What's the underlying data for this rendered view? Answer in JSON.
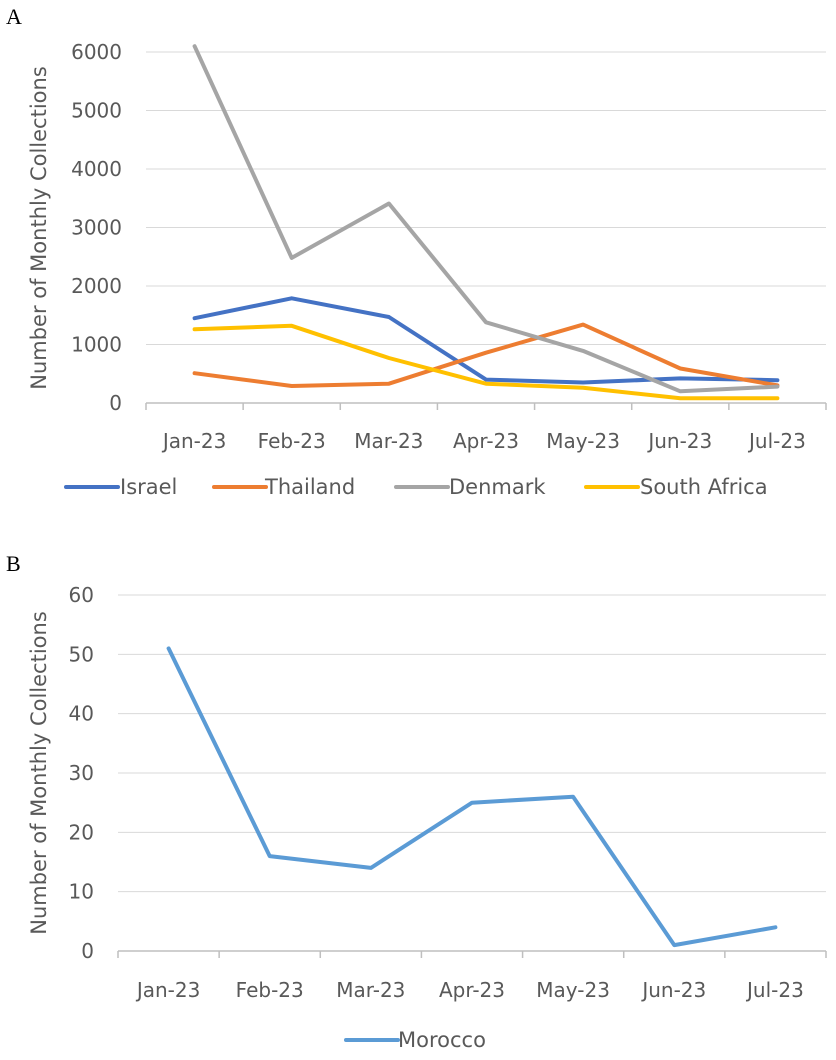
{
  "chart_data": [
    {
      "panel": "A",
      "type": "line",
      "categories": [
        "Jan-23",
        "Feb-23",
        "Mar-23",
        "Apr-23",
        "May-23",
        "Jun-23",
        "Jul-23"
      ],
      "ylabel": "Number of Monthly Collections",
      "ylim": [
        0,
        6000
      ],
      "yticks": [
        0,
        1000,
        2000,
        3000,
        4000,
        5000,
        6000
      ],
      "grid": true,
      "legend": "bottom",
      "series": [
        {
          "name": "Israel",
          "color": "#4472c4",
          "values": [
            1450,
            1790,
            1470,
            400,
            350,
            420,
            390
          ]
        },
        {
          "name": "Thailand",
          "color": "#ed7d31",
          "values": [
            510,
            290,
            330,
            860,
            1340,
            590,
            300
          ]
        },
        {
          "name": "Denmark",
          "color": "#a5a5a5",
          "values": [
            6100,
            2480,
            3410,
            1380,
            890,
            200,
            280
          ]
        },
        {
          "name": "South Africa",
          "color": "#ffc000",
          "values": [
            1260,
            1320,
            770,
            330,
            260,
            80,
            80
          ]
        }
      ]
    },
    {
      "panel": "B",
      "type": "line",
      "categories": [
        "Jan-23",
        "Feb-23",
        "Mar-23",
        "Apr-23",
        "May-23",
        "Jun-23",
        "Jul-23"
      ],
      "ylabel": "Number of Monthly Collections",
      "ylim": [
        0,
        60
      ],
      "yticks": [
        0,
        10,
        20,
        30,
        40,
        50,
        60
      ],
      "grid": true,
      "legend": "bottom",
      "series": [
        {
          "name": "Morocco",
          "color": "#5b9bd5",
          "values": [
            51,
            16,
            14,
            25,
            26,
            1,
            4
          ]
        }
      ]
    }
  ]
}
